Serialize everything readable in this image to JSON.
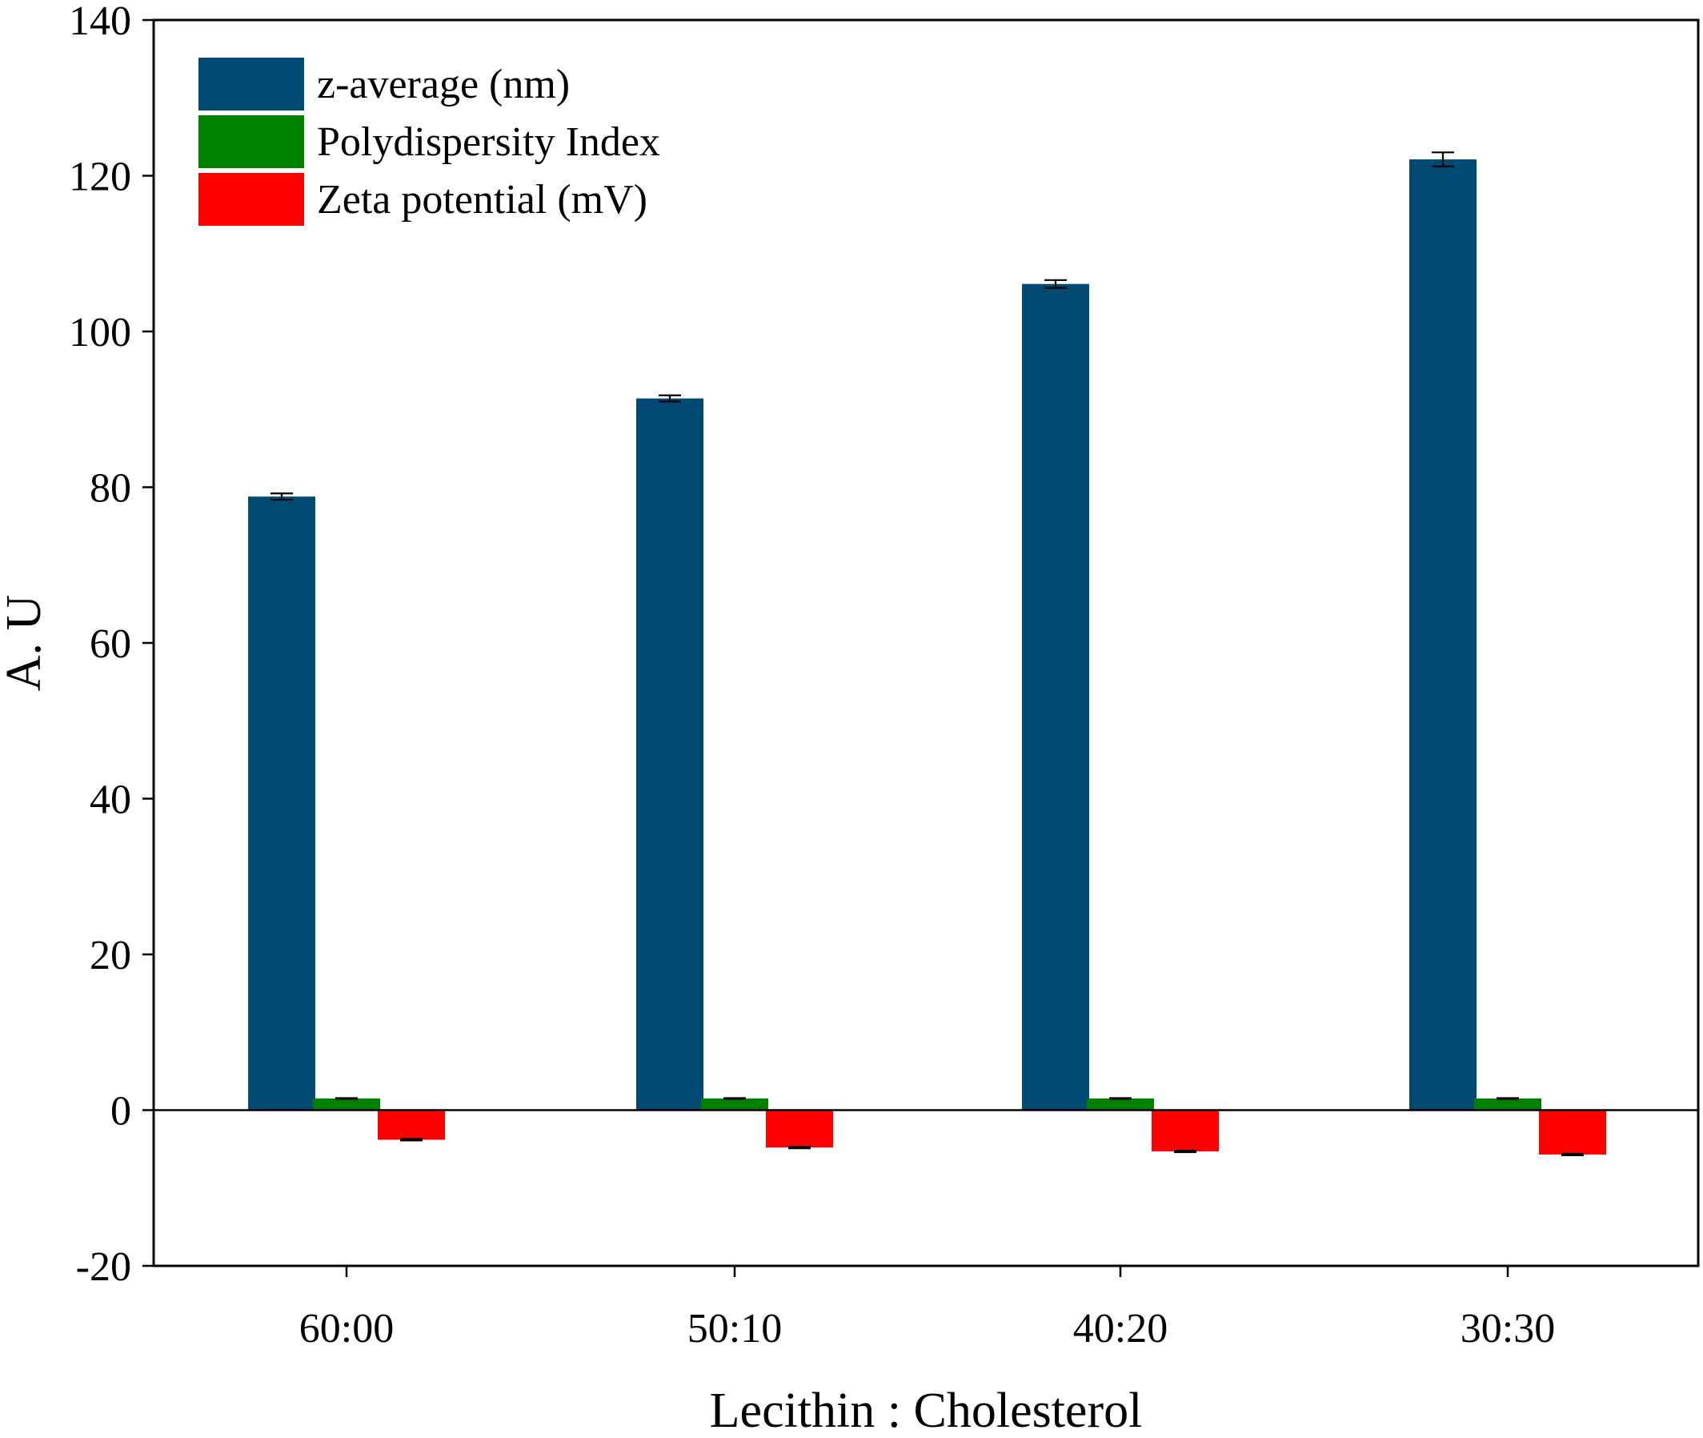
{
  "chart_data": {
    "type": "bar",
    "title": "",
    "xlabel": "Lecithin : Cholesterol",
    "ylabel": "A. U",
    "categories": [
      "60:00",
      "50:10",
      "40:20",
      "30:30"
    ],
    "ylim": [
      -20,
      140
    ],
    "yticks": [
      -20,
      0,
      20,
      40,
      60,
      80,
      100,
      120,
      140
    ],
    "grid": false,
    "legend_position": "top-left",
    "series": [
      {
        "name": "z-average (nm)",
        "color": "#004a73",
        "values": [
          78.8,
          91.4,
          106.1,
          122.1
        ],
        "errors": [
          0.4,
          0.4,
          0.5,
          0.9
        ]
      },
      {
        "name": "Polydispersity Index",
        "color": "#008000",
        "values": [
          1.5,
          1.5,
          1.5,
          1.5
        ],
        "errors": [
          0.05,
          0.05,
          0.05,
          0.05
        ]
      },
      {
        "name": "Zeta potential (mV)",
        "color": "#ff0000",
        "values": [
          -3.8,
          -4.8,
          -5.3,
          -5.7
        ],
        "errors": [
          0.1,
          0.1,
          0.1,
          0.1
        ]
      }
    ]
  }
}
